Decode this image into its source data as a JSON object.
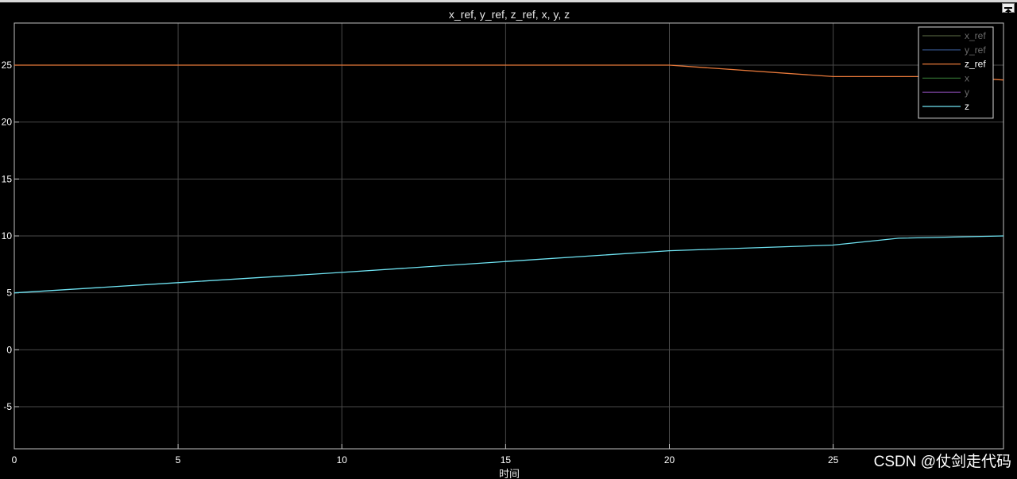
{
  "toolbar": {
    "undock_icon": "undock-arrow-icon"
  },
  "chart_data": {
    "type": "line",
    "title": "x_ref, y_ref, z_ref, x, y, z",
    "xlabel": "时间",
    "ylabel": "",
    "xlim": [
      0,
      30.2
    ],
    "ylim": [
      -8.7,
      28.7
    ],
    "xticks": [
      0,
      5,
      10,
      15,
      20,
      25
    ],
    "yticks": [
      -5,
      0,
      5,
      10,
      15,
      20,
      25
    ],
    "grid": true,
    "legend_position": "top-right",
    "background": "#000000",
    "series": [
      {
        "name": "x_ref",
        "color": "#4d5a3a",
        "x": [],
        "y": []
      },
      {
        "name": "y_ref",
        "color": "#2e4a7a",
        "x": [],
        "y": []
      },
      {
        "name": "z_ref",
        "color": "#e8793a",
        "x": [
          0,
          20,
          25,
          28.5,
          30.2
        ],
        "y": [
          25,
          25,
          24,
          24,
          23.7
        ]
      },
      {
        "name": "x",
        "color": "#2f6b2f",
        "x": [],
        "y": []
      },
      {
        "name": "y",
        "color": "#6a3a8a",
        "x": [],
        "y": []
      },
      {
        "name": "z",
        "color": "#6fe3f2",
        "x": [
          0,
          5,
          10,
          15,
          20,
          25,
          27,
          30.2
        ],
        "y": [
          5,
          5.9,
          6.8,
          7.75,
          8.7,
          9.2,
          9.8,
          10
        ]
      }
    ]
  },
  "watermark": "CSDN @仗剑走代码"
}
